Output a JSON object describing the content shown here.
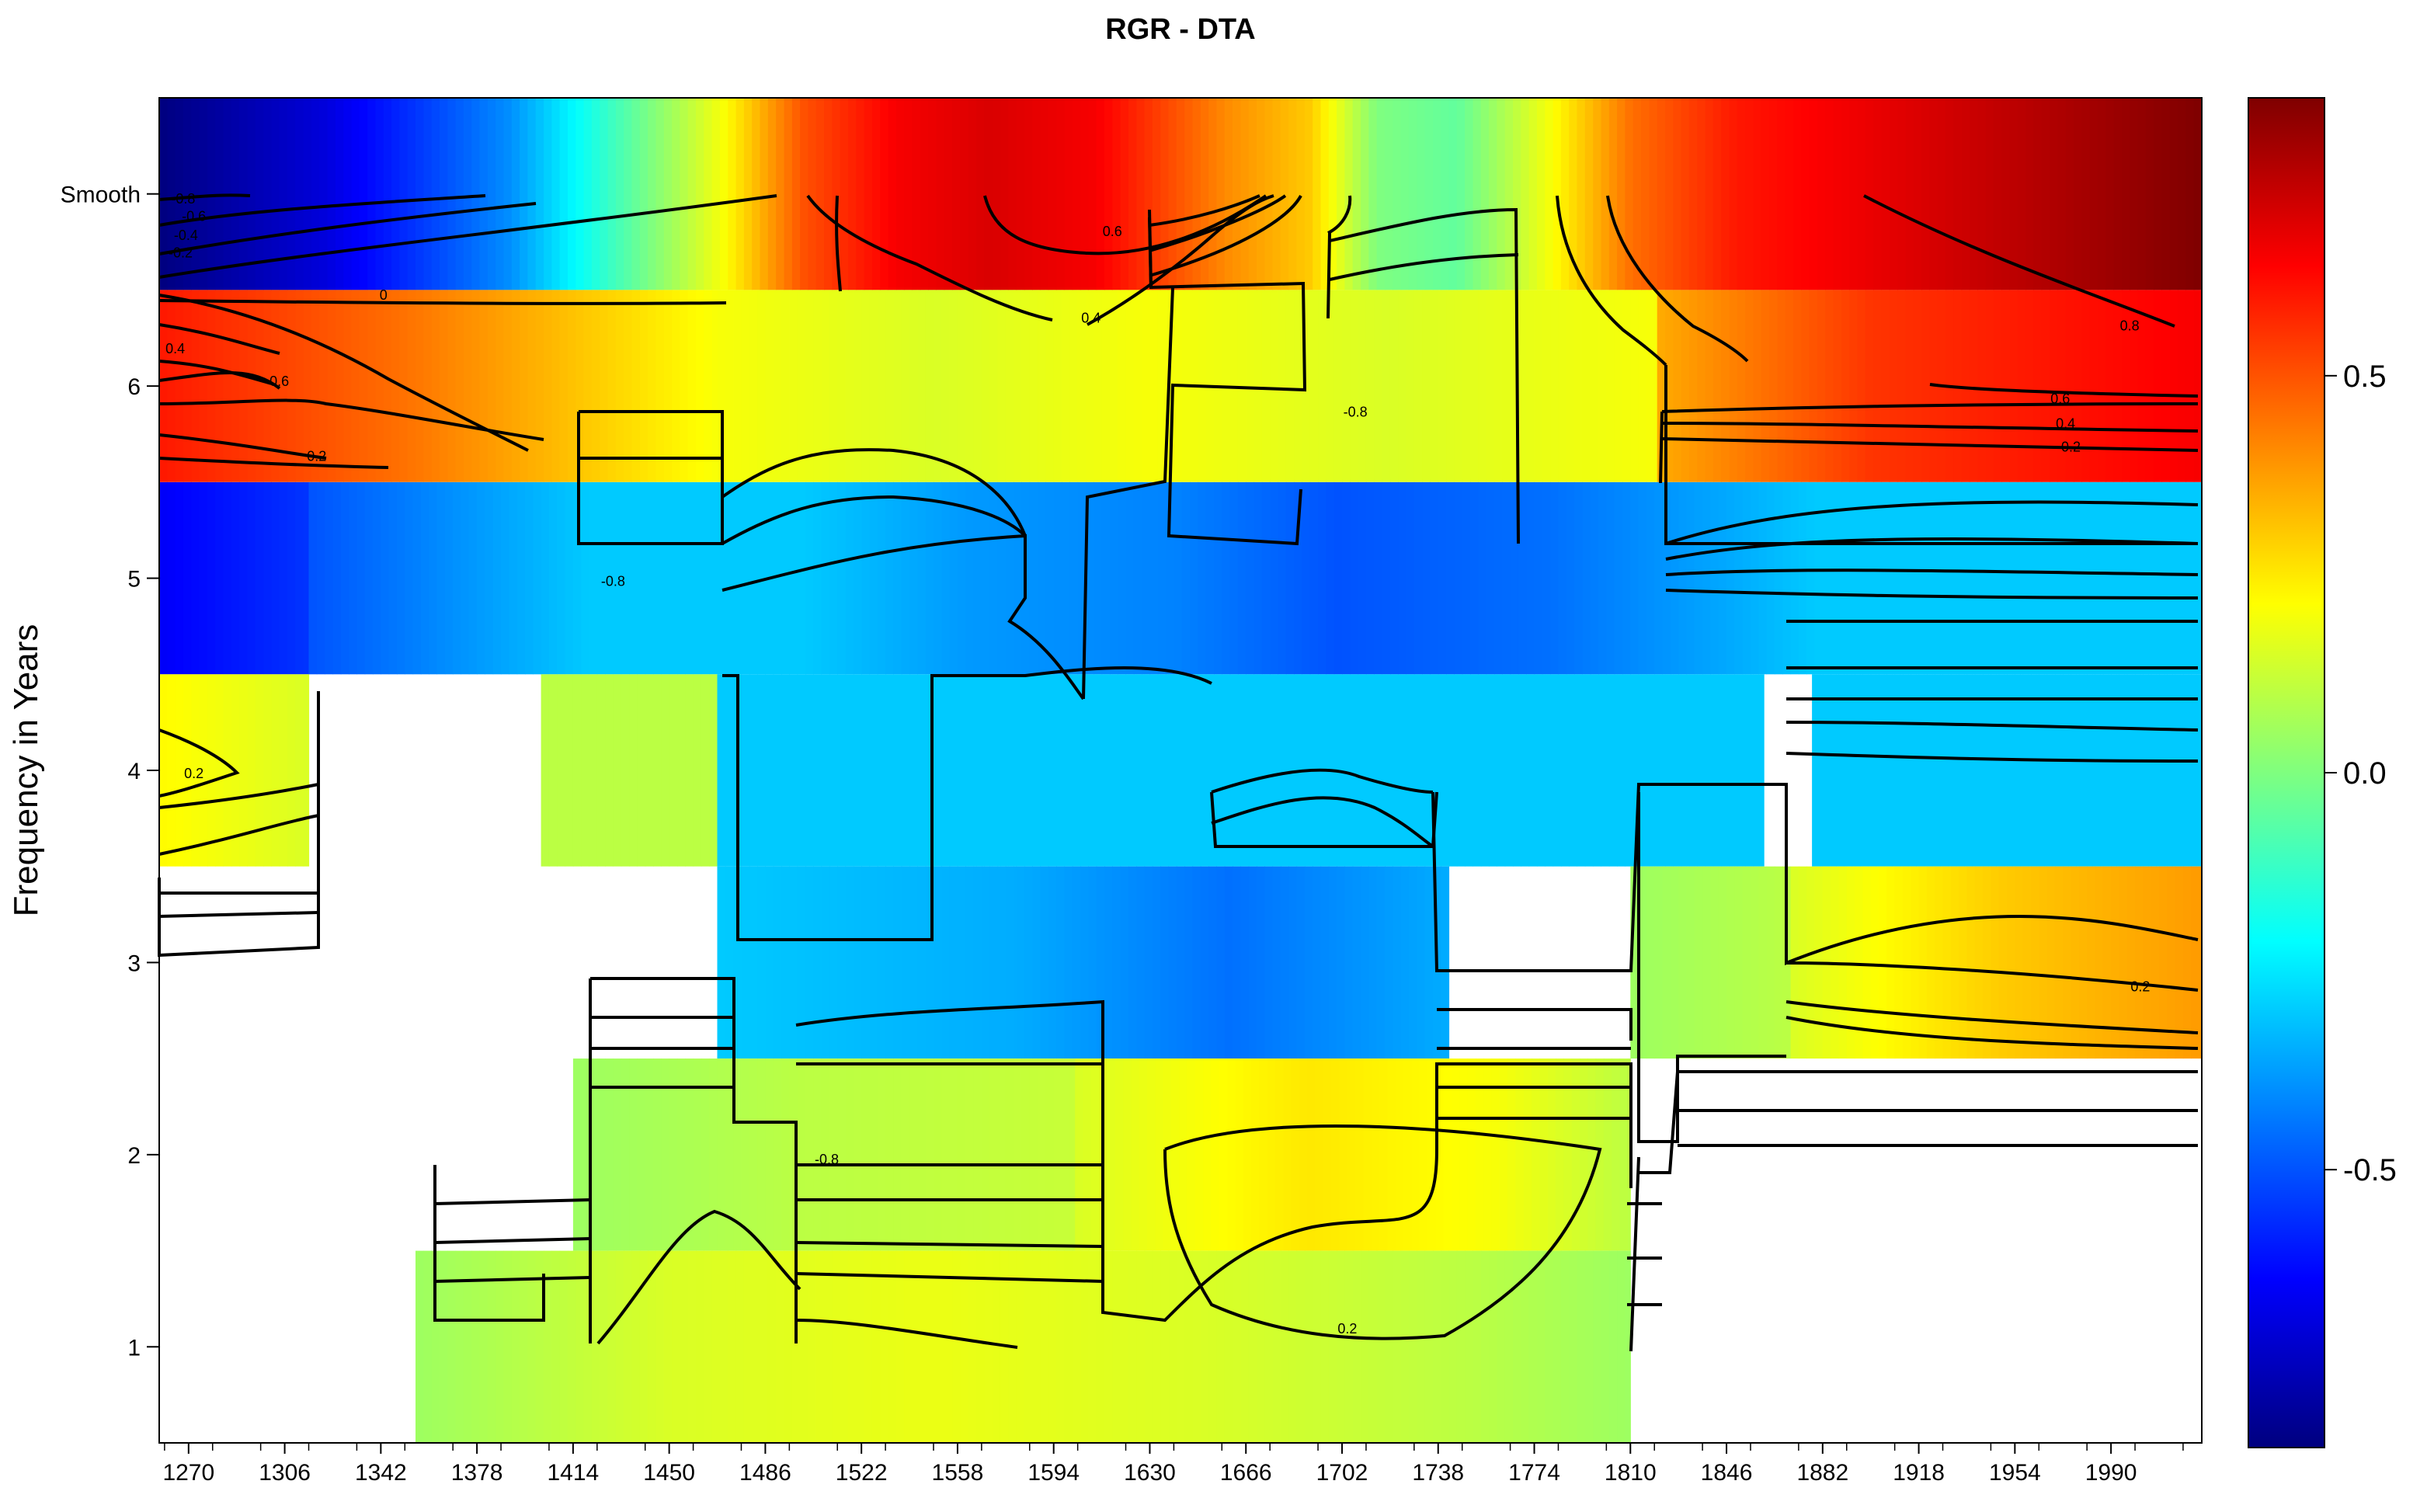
{
  "chart_data": {
    "type": "heatmap",
    "title": "RGR - DTA",
    "xlabel": "",
    "ylabel": "Frequency in Years",
    "x_range": [
      1259,
      2024
    ],
    "y_range": [
      0.5,
      6.5
    ],
    "x_ticks": [
      1270,
      1306,
      1342,
      1378,
      1414,
      1450,
      1486,
      1522,
      1558,
      1594,
      1630,
      1666,
      1702,
      1738,
      1774,
      1810,
      1846,
      1882,
      1918,
      1954,
      1990
    ],
    "y_ticks": [
      {
        "value": 1,
        "label": "1"
      },
      {
        "value": 2,
        "label": "2"
      },
      {
        "value": 3,
        "label": "3"
      },
      {
        "value": 4,
        "label": "4"
      },
      {
        "value": 5,
        "label": "5"
      },
      {
        "value": 6,
        "label": "6"
      },
      {
        "value": 7,
        "label": "Smooth"
      }
    ],
    "colorbar": {
      "range": [
        -0.85,
        0.85
      ],
      "ticks": [
        {
          "value": 0.5,
          "label": "0.5"
        },
        {
          "value": 0.0,
          "label": "0.0"
        },
        {
          "value": -0.5,
          "label": "-0.5"
        }
      ],
      "colors": [
        "#00007f",
        "#0000ff",
        "#007fff",
        "#00ffff",
        "#7fff7f",
        "#ffff00",
        "#ff7f00",
        "#ff0000",
        "#7f0000"
      ]
    },
    "bands": [
      {
        "row": "Smooth",
        "segments": [
          {
            "x": [
              1259,
              2024
            ],
            "knots": [
              [
                1259,
                -0.85
              ],
              [
                1320,
                -0.7
              ],
              [
                1390,
                -0.4
              ],
              [
                1430,
                -0.1
              ],
              [
                1470,
                0.2
              ],
              [
                1500,
                0.5
              ],
              [
                1535,
                0.65
              ],
              [
                1570,
                0.7
              ],
              [
                1610,
                0.65
              ],
              [
                1660,
                0.4
              ],
              [
                1690,
                0.3
              ],
              [
                1715,
                0.0
              ],
              [
                1745,
                -0.05
              ],
              [
                1780,
                0.2
              ],
              [
                1810,
                0.45
              ],
              [
                1850,
                0.6
              ],
              [
                1920,
                0.7
              ],
              [
                2024,
                0.85
              ]
            ]
          }
        ]
      },
      {
        "row": "6",
        "segments": [
          {
            "x": [
              1259,
              1468
            ],
            "knots": [
              [
                1259,
                0.6
              ],
              [
                1350,
                0.45
              ],
              [
                1420,
                0.3
              ],
              [
                1468,
                0.2
              ]
            ]
          },
          {
            "x": [
              1468,
              1630
            ],
            "knots": [
              [
                1468,
                0.2
              ],
              [
                1550,
                0.15
              ],
              [
                1630,
                0.2
              ]
            ]
          },
          {
            "x": [
              1630,
              1820
            ],
            "knots": [
              [
                1630,
                0.2
              ],
              [
                1720,
                0.15
              ],
              [
                1820,
                0.2
              ]
            ]
          },
          {
            "x": [
              1820,
              2024
            ],
            "knots": [
              [
                1820,
                0.35
              ],
              [
                1900,
                0.55
              ],
              [
                2024,
                0.65
              ]
            ]
          }
        ]
      },
      {
        "row": "5",
        "segments": [
          {
            "x": [
              1259,
              1315
            ],
            "knots": [
              [
                1259,
                -0.65
              ],
              [
                1315,
                -0.55
              ]
            ]
          },
          {
            "x": [
              1315,
              2024
            ],
            "knots": [
              [
                1315,
                -0.5
              ],
              [
                1420,
                -0.3
              ],
              [
                1500,
                -0.3
              ],
              [
                1560,
                -0.38
              ],
              [
                1640,
                -0.42
              ],
              [
                1700,
                -0.5
              ],
              [
                1780,
                -0.45
              ],
              [
                1850,
                -0.35
              ],
              [
                1880,
                -0.3
              ]
            ]
          }
        ]
      },
      {
        "row": "4",
        "segments": [
          {
            "x": [
              1259,
              1315
            ],
            "knots": [
              [
                1259,
                0.22
              ],
              [
                1315,
                0.15
              ]
            ]
          },
          {
            "x": [
              1402,
              1468
            ],
            "knots": [
              [
                1402,
                0.1
              ],
              [
                1468,
                0.1
              ]
            ]
          },
          {
            "x": [
              1468,
              1562
            ],
            "knots": [
              [
                1468,
                -0.3
              ],
              [
                1562,
                -0.3
              ]
            ]
          },
          {
            "x": [
              1562,
              1860
            ],
            "knots": [
              [
                1562,
                -0.3
              ],
              [
                1650,
                -0.3
              ]
            ]
          },
          {
            "x": [
              1878,
              2024
            ],
            "knots": [
              [
                1878,
                -0.3
              ],
              [
                2024,
                -0.3
              ]
            ]
          }
        ]
      },
      {
        "row": "3",
        "segments": [
          {
            "x": [
              1468,
              1580
            ],
            "knots": [
              [
                1468,
                -0.3
              ],
              [
                1580,
                -0.35
              ]
            ]
          },
          {
            "x": [
              1580,
              1742
            ],
            "knots": [
              [
                1580,
                -0.35
              ],
              [
                1660,
                -0.45
              ],
              [
                1742,
                -0.35
              ]
            ]
          },
          {
            "x": [
              1810,
              1870
            ],
            "knots": [
              [
                1810,
                0.05
              ],
              [
                1870,
                0.1
              ]
            ]
          },
          {
            "x": [
              1870,
              2024
            ],
            "knots": [
              [
                1870,
                0.15
              ],
              [
                1950,
                0.3
              ],
              [
                2024,
                0.38
              ]
            ]
          }
        ]
      },
      {
        "row": "2",
        "segments": [
          {
            "x": [
              1414,
              1602
            ],
            "knots": [
              [
                1414,
                0.05
              ],
              [
                1500,
                0.1
              ],
              [
                1602,
                0.12
              ]
            ]
          },
          {
            "x": [
              1602,
              1810
            ],
            "knots": [
              [
                1602,
                0.15
              ],
              [
                1690,
                0.25
              ],
              [
                1760,
                0.2
              ],
              [
                1810,
                0.1
              ]
            ]
          }
        ]
      },
      {
        "row": "1",
        "segments": [
          {
            "x": [
              1355,
              1810
            ],
            "knots": [
              [
                1355,
                0.05
              ],
              [
                1450,
                0.15
              ],
              [
                1550,
                0.18
              ],
              [
                1650,
                0.15
              ],
              [
                1750,
                0.1
              ],
              [
                1810,
                0.05
              ]
            ]
          }
        ]
      }
    ],
    "contour_labels": [
      {
        "x": 1268,
        "y": 6.95,
        "text": "-0.8"
      },
      {
        "x": 1272,
        "y": 6.86,
        "text": "-0.6"
      },
      {
        "x": 1269,
        "y": 6.76,
        "text": "-0.4"
      },
      {
        "x": 1267,
        "y": 6.67,
        "text": "-0.2"
      },
      {
        "x": 1343,
        "y": 6.45,
        "text": "0"
      },
      {
        "x": 1616,
        "y": 6.78,
        "text": "0.6"
      },
      {
        "x": 1608,
        "y": 6.33,
        "text": "0.4"
      },
      {
        "x": 1265,
        "y": 6.17,
        "text": "0.4"
      },
      {
        "x": 1304,
        "y": 6.0,
        "text": "0.6"
      },
      {
        "x": 1318,
        "y": 5.61,
        "text": "0.2"
      },
      {
        "x": 1707,
        "y": 5.84,
        "text": "-0.8"
      },
      {
        "x": 1997,
        "y": 6.29,
        "text": "0.8"
      },
      {
        "x": 1971,
        "y": 5.91,
        "text": "0.6"
      },
      {
        "x": 1973,
        "y": 5.78,
        "text": "0.4"
      },
      {
        "x": 1975,
        "y": 5.66,
        "text": "0.2"
      },
      {
        "x": 1429,
        "y": 4.96,
        "text": "-0.8"
      },
      {
        "x": 1272,
        "y": 3.96,
        "text": "0.2"
      },
      {
        "x": 2001,
        "y": 2.85,
        "text": "0.2"
      },
      {
        "x": 1509,
        "y": 1.95,
        "text": "-0.8"
      },
      {
        "x": 1704,
        "y": 1.07,
        "text": "0.2"
      }
    ]
  }
}
